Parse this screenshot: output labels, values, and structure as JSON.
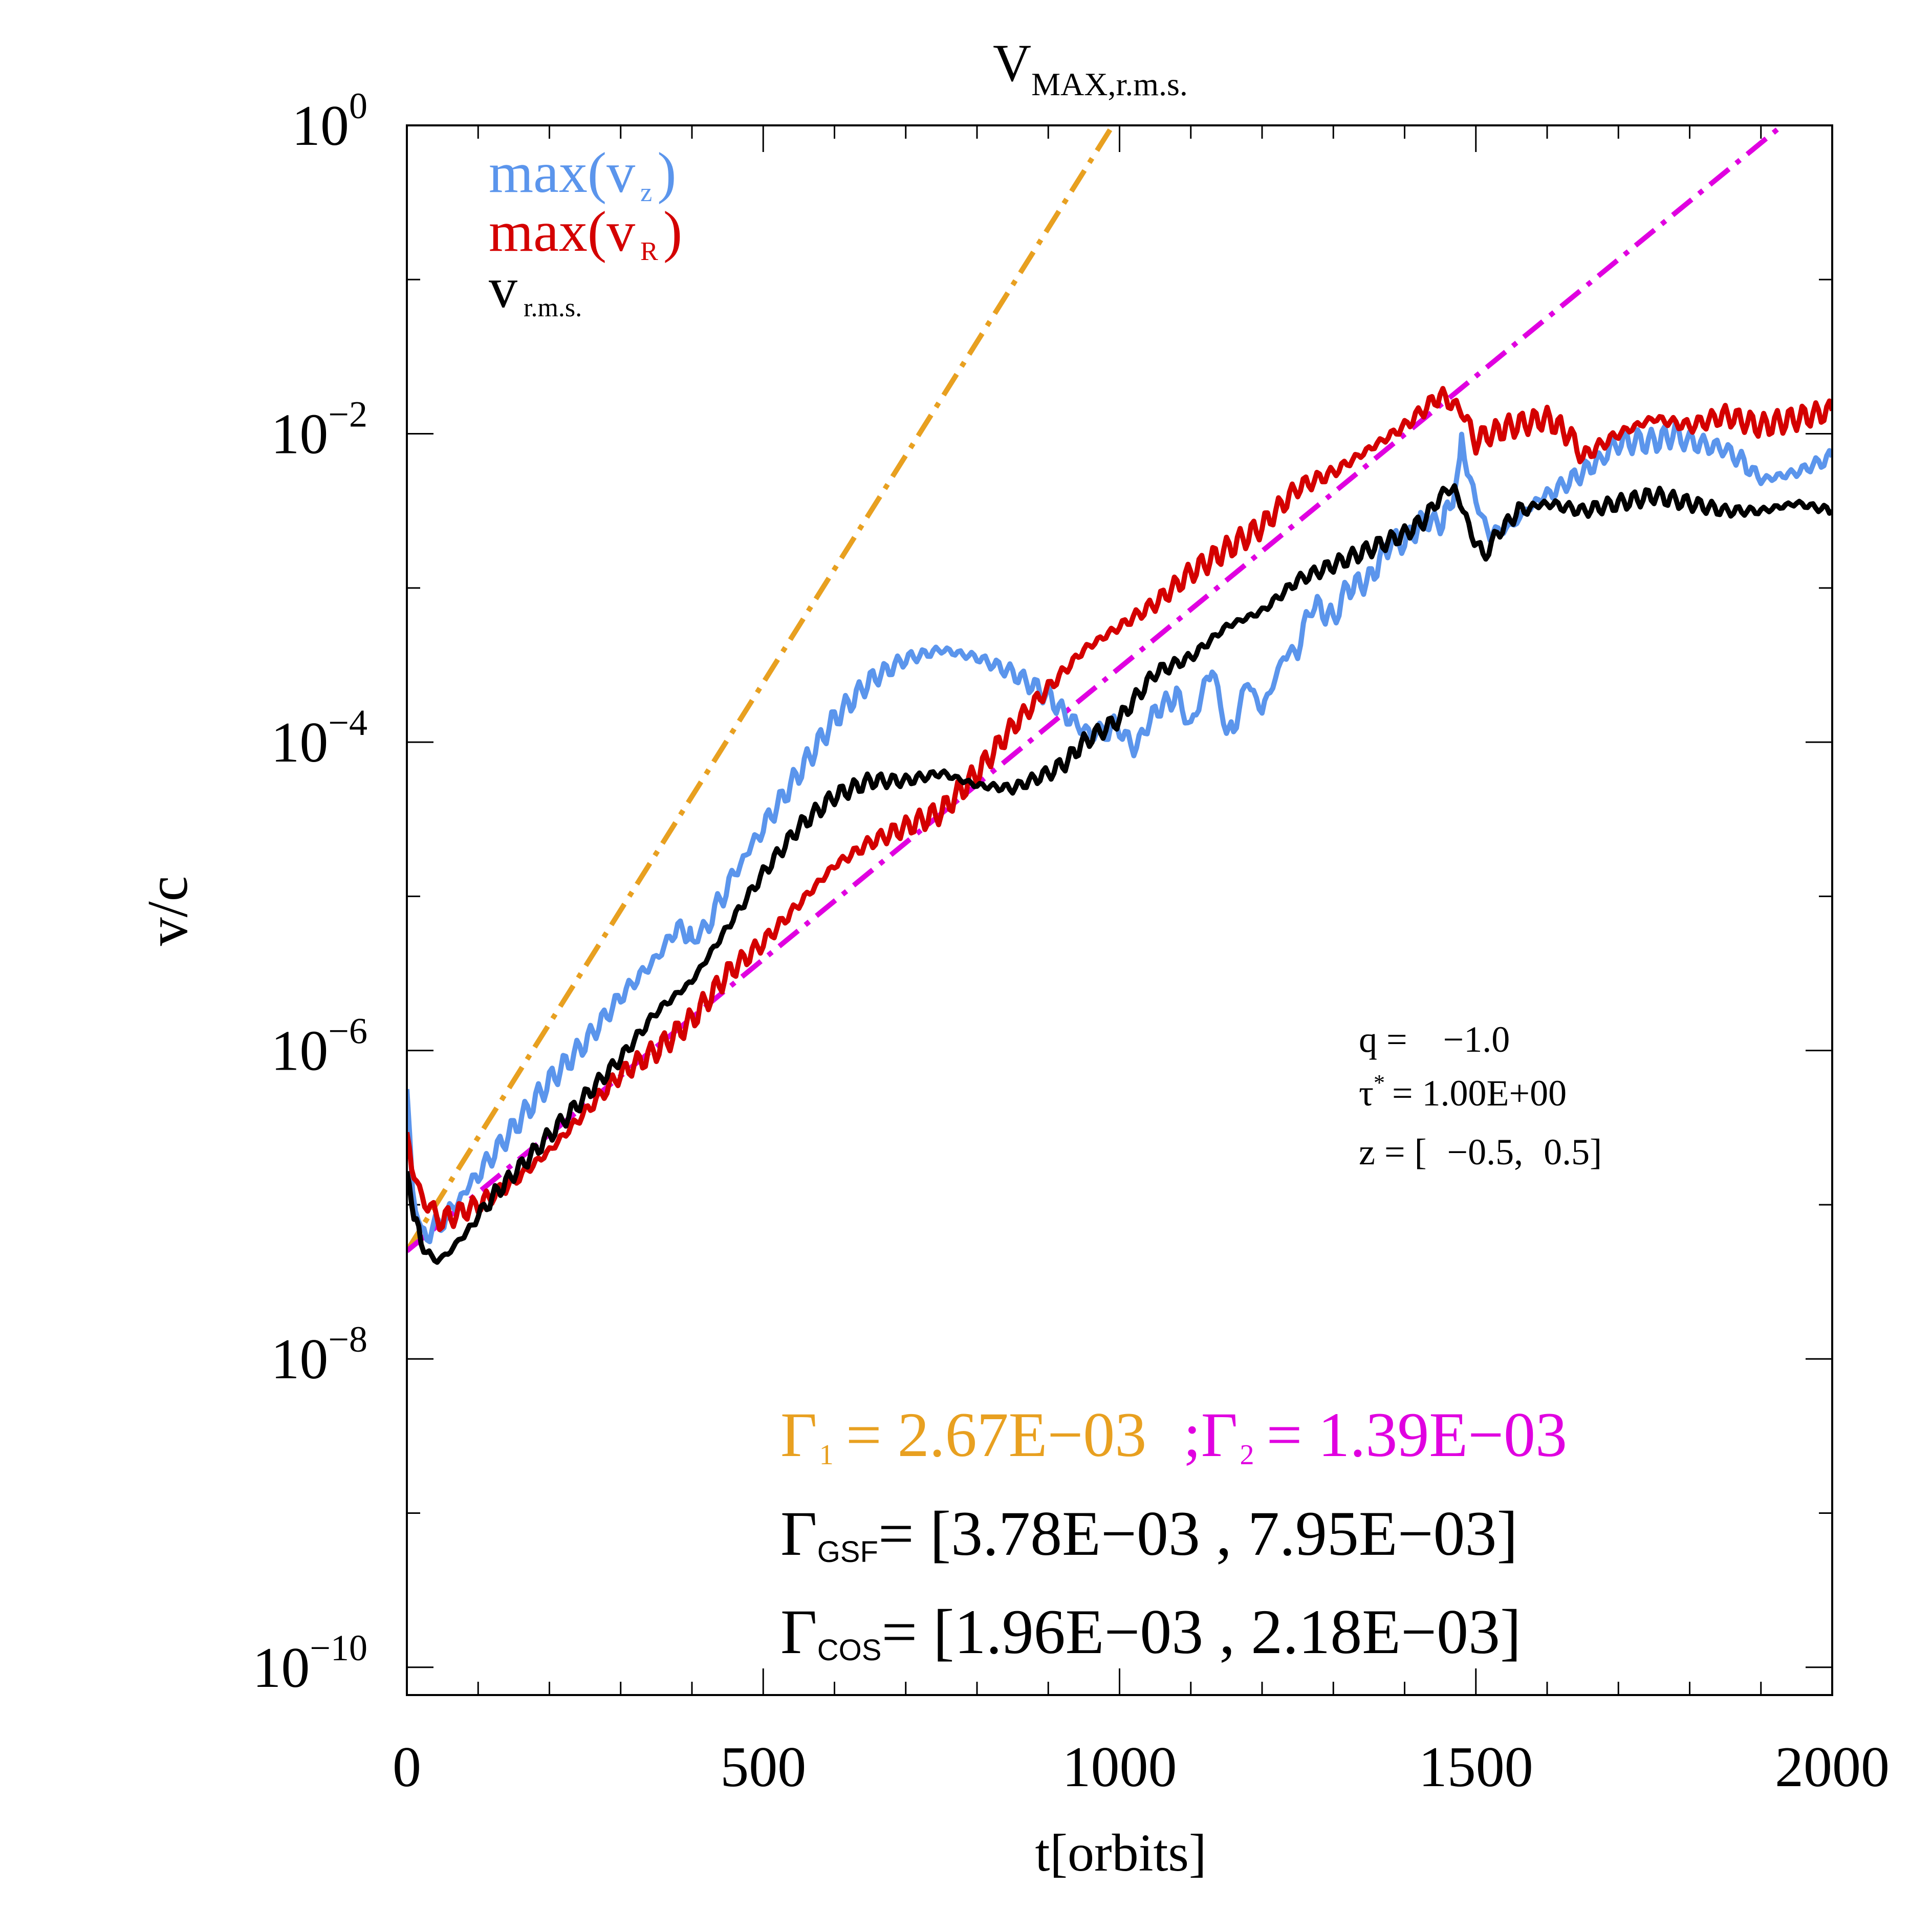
{
  "chart_data": {
    "type": "line",
    "title_main": "V",
    "title_sub": "MAX,r.m.s.",
    "xlabel": "t[orbits]",
    "ylabel": "v/c",
    "xlim": [
      0,
      2000
    ],
    "ylog_exp_range": [
      -10.18,
      0
    ],
    "x_ticks": [
      "0",
      "500",
      "1000",
      "1500",
      "2000"
    ],
    "x_tick_values": [
      0,
      500,
      1000,
      1500,
      2000
    ],
    "y_tick_base": "10",
    "y_tick_exps": [
      "0",
      "-2",
      "-4",
      "-6",
      "-8",
      "-10"
    ],
    "y_tick_exp_values": [
      0,
      -2,
      -4,
      -6,
      -8,
      -10
    ],
    "legend": [
      {
        "main": "max(v",
        "sub": "z",
        "close": ")",
        "color": "#5b95ec"
      },
      {
        "main": "max(v",
        "sub": "R",
        "close": ")",
        "color": "#d40000"
      },
      {
        "main": "v",
        "sub": "r.m.s.",
        "close": "",
        "color": "#000000"
      }
    ],
    "params": {
      "q_label": "q =",
      "q_value": "−1.0",
      "tau_label": "τ",
      "tau_sup": "*",
      "tau_value": "= 1.00E+00",
      "z_label": "z = [",
      "z_value1": "−0.5,",
      "z_value2": "0.5]"
    },
    "rates": {
      "gamma": "Γ",
      "g1_sub": "1",
      "g1_value": "= 2.67E−03",
      "sep": ";",
      "g2_sub": "2",
      "g2_value": "= 1.39E−03",
      "gsf_sub": "GSF",
      "gsf_value": "= [3.78E−03 , 7.95E−03]",
      "cos_sub": "COS",
      "cos_value": "= [1.96E−03 , 2.18E−03]"
    },
    "fit_lines": [
      {
        "name": "Gamma1 fit",
        "color": "#e8a020",
        "style": "dashdot",
        "x": [
          0,
          1000
        ],
        "logy": [
          -7.3,
          0.07
        ]
      },
      {
        "name": "Gamma2 fit",
        "color": "#e000e0",
        "style": "dashdot",
        "x": [
          0,
          1930
        ],
        "logy": [
          -7.3,
          0
        ]
      }
    ],
    "series": [
      {
        "name": "max(v_z)",
        "color": "#5b95ec",
        "x": [
          0,
          8,
          20,
          40,
          60,
          100,
          150,
          200,
          250,
          300,
          350,
          380,
          395,
          400,
          420,
          460,
          500,
          550,
          600,
          650,
          700,
          750,
          800,
          850,
          900,
          930,
          960,
          1000,
          1020,
          1050,
          1080,
          1100,
          1130,
          1150,
          1160,
          1180,
          1200,
          1230,
          1250,
          1270,
          1300,
          1320,
          1350,
          1380,
          1400,
          1430,
          1450,
          1460,
          1475,
          1480,
          1500,
          1520,
          1550,
          1580,
          1600,
          1650,
          1680,
          1700,
          1750,
          1780,
          1800,
          1850,
          1880,
          1900,
          1950,
          2000
        ],
        "logy": [
          -6.25,
          -6.9,
          -7.2,
          -7.15,
          -7.05,
          -6.8,
          -6.5,
          -6.2,
          -5.95,
          -5.65,
          -5.4,
          -5.2,
          -5.25,
          -5.3,
          -5.2,
          -4.85,
          -4.55,
          -4.2,
          -3.85,
          -3.6,
          -3.46,
          -3.4,
          -3.45,
          -3.55,
          -3.7,
          -3.85,
          -3.95,
          -3.9,
          -4.05,
          -3.8,
          -3.7,
          -3.9,
          -3.5,
          -3.95,
          -3.9,
          -3.6,
          -3.8,
          -3.45,
          -3.4,
          -3.1,
          -3.2,
          -3.0,
          -2.95,
          -2.7,
          -2.7,
          -2.55,
          -2.6,
          -2.5,
          -2.3,
          -2.05,
          -2.45,
          -2.65,
          -2.6,
          -2.45,
          -2.4,
          -2.25,
          -2.15,
          -2.05,
          -2.05,
          -2.0,
          -2.05,
          -2.1,
          -2.2,
          -2.3,
          -2.25,
          -2.15
        ]
      },
      {
        "name": "max(v_R)",
        "color": "#d40000",
        "x": [
          0,
          10,
          25,
          50,
          100,
          150,
          200,
          250,
          300,
          350,
          400,
          450,
          500,
          550,
          600,
          650,
          700,
          750,
          800,
          850,
          900,
          950,
          1000,
          1050,
          1100,
          1150,
          1200,
          1250,
          1300,
          1350,
          1400,
          1450,
          1480,
          1500,
          1520,
          1550,
          1600,
          1630,
          1650,
          1700,
          1750,
          1800,
          1850,
          1900,
          1950,
          2000
        ],
        "logy": [
          -6.6,
          -6.8,
          -7.0,
          -7.1,
          -7.0,
          -6.85,
          -6.65,
          -6.4,
          -6.15,
          -6.0,
          -5.8,
          -5.5,
          -5.3,
          -5.05,
          -4.8,
          -4.65,
          -4.55,
          -4.45,
          -4.2,
          -3.9,
          -3.65,
          -3.4,
          -3.25,
          -3.1,
          -2.9,
          -2.75,
          -2.6,
          -2.35,
          -2.25,
          -2.1,
          -1.95,
          -1.75,
          -1.85,
          -2.05,
          -2.0,
          -1.95,
          -1.9,
          -2.0,
          -2.15,
          -2.0,
          -1.9,
          -1.95,
          -1.88,
          -1.95,
          -1.9,
          -1.85
        ]
      },
      {
        "name": "v_r.m.s.",
        "color": "#000000",
        "x": [
          0,
          10,
          20,
          35,
          50,
          80,
          120,
          150,
          200,
          250,
          300,
          350,
          400,
          450,
          500,
          550,
          600,
          650,
          700,
          750,
          800,
          850,
          900,
          920,
          950,
          1000,
          1050,
          1100,
          1150,
          1200,
          1250,
          1300,
          1350,
          1400,
          1430,
          1450,
          1470,
          1490,
          1510,
          1530,
          1560,
          1600,
          1650,
          1700,
          1750,
          1800,
          1850,
          1900,
          1950,
          2000
        ],
        "logy": [
          -6.8,
          -7.05,
          -7.25,
          -7.35,
          -7.35,
          -7.2,
          -6.95,
          -6.8,
          -6.55,
          -6.3,
          -6.05,
          -5.75,
          -5.55,
          -5.2,
          -4.85,
          -4.55,
          -4.35,
          -4.25,
          -4.25,
          -4.2,
          -4.28,
          -4.3,
          -4.2,
          -4.15,
          -4.0,
          -3.85,
          -3.55,
          -3.45,
          -3.25,
          -3.15,
          -2.95,
          -2.85,
          -2.75,
          -2.65,
          -2.55,
          -2.4,
          -2.35,
          -2.6,
          -2.8,
          -2.65,
          -2.5,
          -2.45,
          -2.5,
          -2.45,
          -2.4,
          -2.45,
          -2.5,
          -2.5,
          -2.45,
          -2.5
        ]
      }
    ]
  }
}
